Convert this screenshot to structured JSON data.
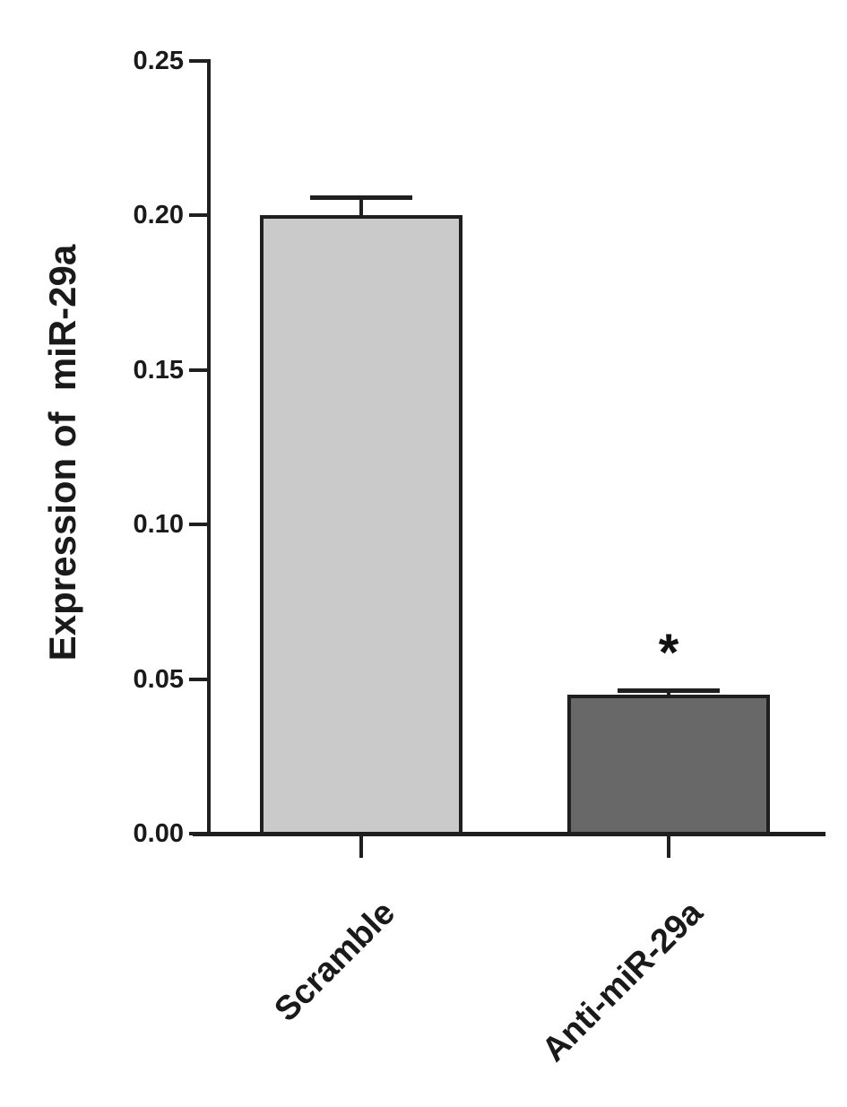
{
  "chart_data": {
    "type": "bar",
    "title": "",
    "ylabel": "Expression of  miR-29a",
    "xlabel": "",
    "categories": [
      "Scramble",
      "Anti-miR-29a"
    ],
    "values": [
      0.2,
      0.045
    ],
    "errors_upper": [
      0.006,
      0.0015
    ],
    "error_style": "upper-only caps",
    "ylim": [
      0.0,
      0.25
    ],
    "yticks": [
      0.0,
      0.05,
      0.1,
      0.15,
      0.2,
      0.25
    ],
    "ytick_labels": [
      "0.00",
      "0.05",
      "0.10",
      "0.15",
      "0.20",
      "0.25"
    ],
    "bar_colors": [
      "#cacaca",
      "#686868"
    ],
    "bar_border_color": "#1f1f1f",
    "axis_color": "#1f1f1f",
    "text_color": "#1a1a1a",
    "grid": false,
    "legend": null,
    "annotations": [
      {
        "text": "*",
        "target_category": "Anti-miR-29a",
        "meaning": "statistically significant vs Scramble"
      }
    ]
  }
}
